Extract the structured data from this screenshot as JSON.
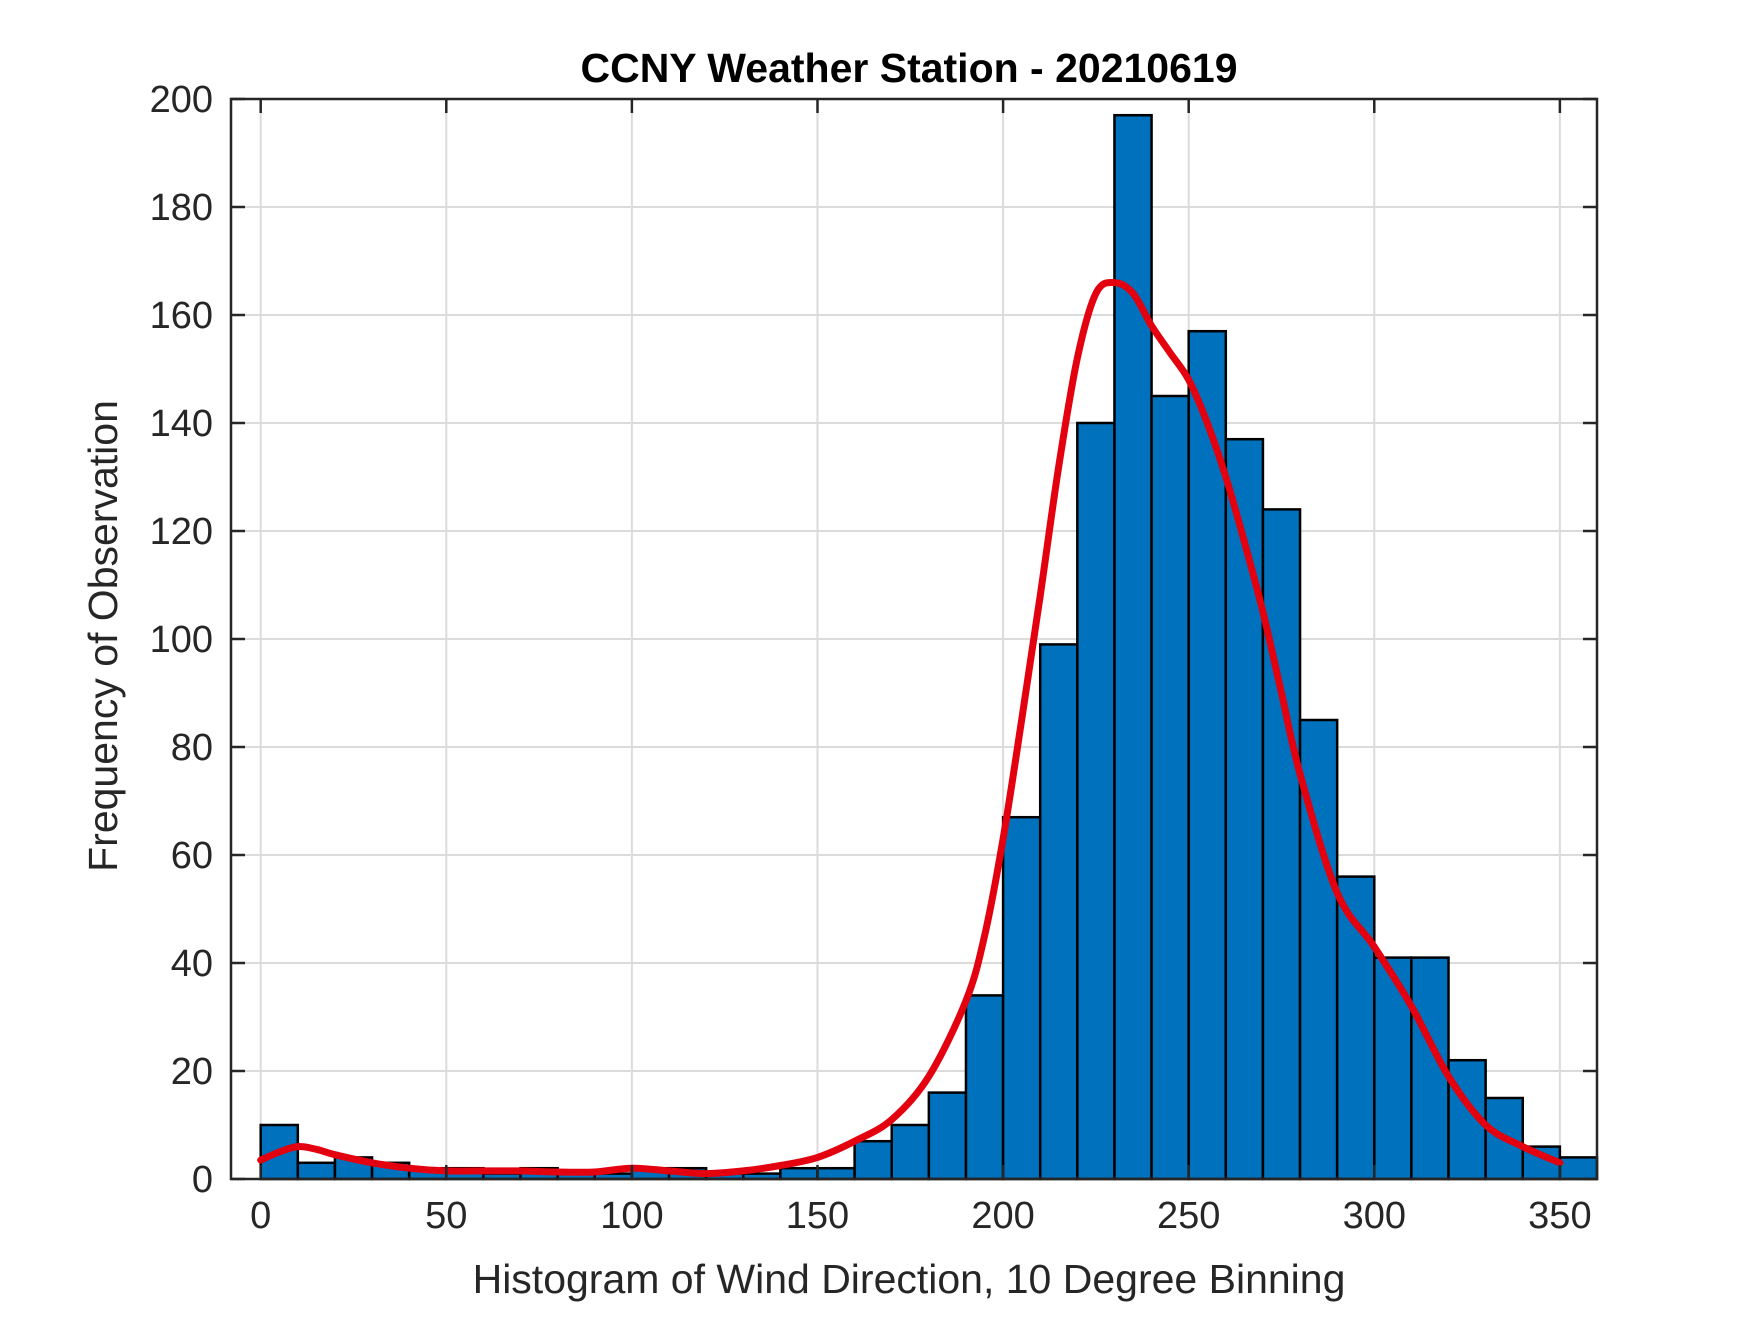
{
  "colors": {
    "bar_fill": "#0072BD",
    "bar_edge": "#000000",
    "fit_line": "#E3000F",
    "grid": "#DBDBDB",
    "axes": "#262626",
    "background": "#FFFFFF"
  },
  "chart_data": {
    "type": "bar",
    "title": "CCNY Weather Station - 20210619",
    "xlabel": "Histogram of Wind Direction, 10 Degree Binning",
    "ylabel": "Frequency of Observation",
    "xlim": [
      -8,
      360
    ],
    "ylim": [
      0,
      200
    ],
    "grid": true,
    "legend": "none",
    "x_ticks": [
      0,
      50,
      100,
      150,
      200,
      250,
      300,
      350
    ],
    "y_ticks": [
      0,
      20,
      40,
      60,
      80,
      100,
      120,
      140,
      160,
      180,
      200
    ],
    "bin_width": 10,
    "bin_start": 0,
    "values": [
      10,
      3,
      4,
      3,
      2,
      2,
      1,
      2,
      1,
      1,
      2,
      2,
      1,
      1,
      2,
      2,
      7,
      10,
      16,
      34,
      67,
      99,
      140,
      197,
      145,
      157,
      137,
      124,
      85,
      56,
      41,
      41,
      22,
      15,
      6,
      4
    ],
    "series": [
      {
        "type": "line",
        "x": [
          0,
          5,
          10,
          15,
          20,
          30,
          40,
          50,
          60,
          70,
          80,
          90,
          100,
          110,
          120,
          130,
          140,
          150,
          160,
          170,
          180,
          190,
          195,
          200,
          205,
          210,
          215,
          220,
          225,
          230,
          235,
          240,
          245,
          250,
          255,
          260,
          265,
          270,
          275,
          280,
          290,
          300,
          310,
          320,
          330,
          340,
          350
        ],
        "y": [
          3.5,
          5,
          6,
          5.5,
          4.5,
          3,
          2,
          1.5,
          1.5,
          1.5,
          1.3,
          1.3,
          2,
          1.5,
          1,
          1.5,
          2.5,
          4,
          7,
          11,
          19,
          33,
          45,
          63,
          85,
          108,
          132,
          152,
          164,
          166,
          164,
          158,
          153,
          148,
          140,
          130,
          118,
          105,
          90,
          75,
          53,
          43,
          32,
          19,
          10,
          6,
          3
        ]
      }
    ]
  }
}
